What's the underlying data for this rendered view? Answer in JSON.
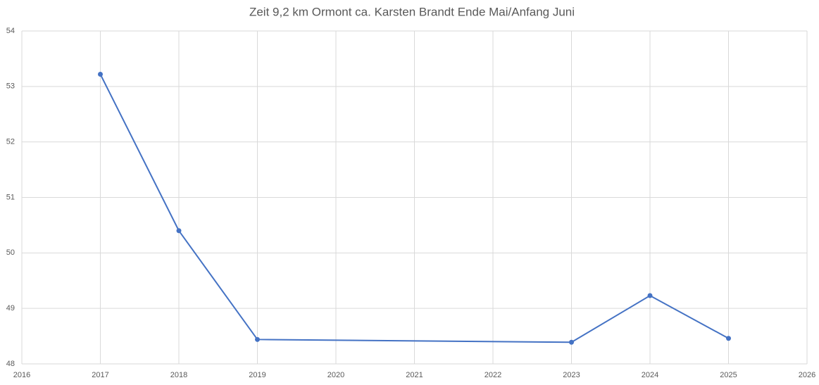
{
  "chart_data": {
    "type": "line",
    "title": "Zeit 9,2 km Ormont ca. Karsten Brandt Ende Mai/Anfang Juni",
    "x": [
      2017,
      2018,
      2019,
      2023,
      2024,
      2025
    ],
    "values": [
      53.22,
      50.4,
      48.44,
      48.39,
      49.23,
      48.46
    ],
    "color": "#4472c4",
    "xlim": [
      2016,
      2026
    ],
    "xticks": [
      2016,
      2017,
      2018,
      2019,
      2020,
      2021,
      2022,
      2023,
      2024,
      2025,
      2026
    ],
    "ylim": [
      48,
      54
    ],
    "yticks": [
      48,
      49,
      50,
      51,
      52,
      53,
      54
    ],
    "grid": true
  }
}
